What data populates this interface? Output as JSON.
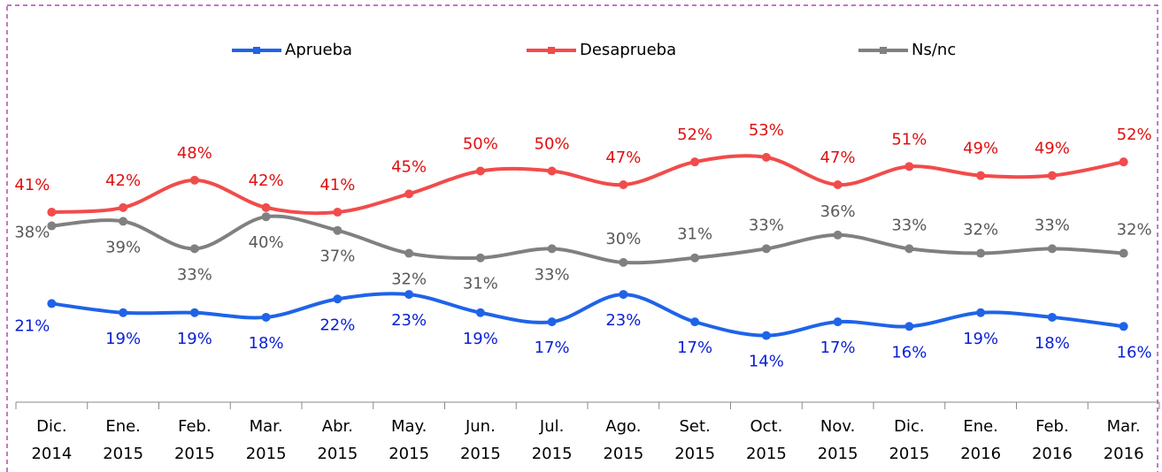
{
  "chart_data": {
    "type": "line",
    "categories": [
      "Dic. 2014",
      "Ene. 2015",
      "Feb. 2015",
      "Mar. 2015",
      "Abr. 2015",
      "May. 2015",
      "Jun. 2015",
      "Jul. 2015",
      "Ago. 2015",
      "Set. 2015",
      "Oct. 2015",
      "Nov. 2015",
      "Dic. 2015",
      "Ene. 2016",
      "Feb. 2016",
      "Mar. 2016"
    ],
    "series": [
      {
        "name": "Aprueba",
        "color": "#1f63e8",
        "label_color": "#0a1fd6",
        "values": [
          21,
          19,
          19,
          18,
          22,
          23,
          19,
          17,
          23,
          17,
          14,
          17,
          16,
          19,
          18,
          16
        ],
        "value_labels": [
          "21%",
          "19%",
          "19%",
          "18%",
          "22%",
          "23%",
          "19%",
          "17%",
          "23%",
          "17%",
          "14%",
          "17%",
          "16%",
          "19%",
          "18%",
          "16%"
        ]
      },
      {
        "name": "Desaprueba",
        "color": "#f24b4b",
        "label_color": "#e01010",
        "values": [
          41,
          42,
          48,
          42,
          41,
          45,
          50,
          50,
          47,
          52,
          53,
          47,
          51,
          49,
          49,
          52
        ],
        "value_labels": [
          "41%",
          "42%",
          "48%",
          "42%",
          "41%",
          "45%",
          "50%",
          "50%",
          "47%",
          "52%",
          "53%",
          "47%",
          "51%",
          "49%",
          "49%",
          "52%"
        ]
      },
      {
        "name": "Ns/nc",
        "color": "#808080",
        "label_color": "#595959",
        "values": [
          38,
          39,
          33,
          40,
          37,
          32,
          31,
          33,
          30,
          31,
          33,
          36,
          33,
          32,
          33,
          32
        ],
        "value_labels": [
          "38%",
          "39%",
          "33%",
          "40%",
          "37%",
          "32%",
          "31%",
          "33%",
          "30%",
          "31%",
          "33%",
          "36%",
          "33%",
          "32%",
          "33%",
          "32%"
        ]
      }
    ],
    "legend": "top"
  }
}
